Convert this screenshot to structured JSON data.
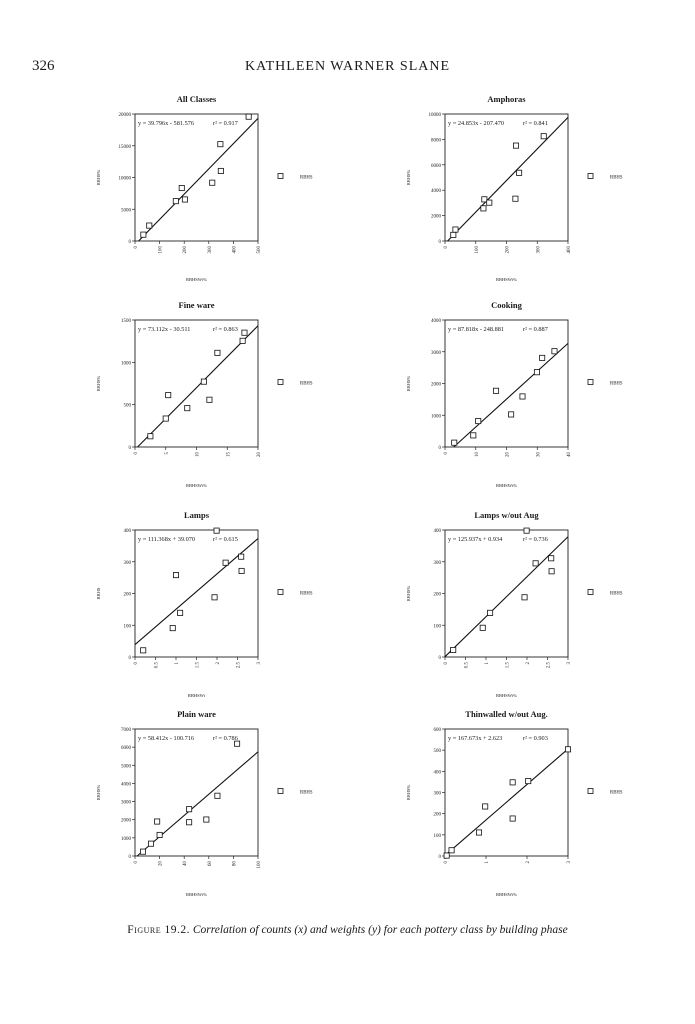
{
  "header": {
    "page_number": "326",
    "running_title": "KATHLEEN WARNER SLANE"
  },
  "caption": {
    "label": "Figure 19.2.",
    "text": "Correlation of counts (x) and weights (y) for each pottery class by building phase"
  },
  "chart_data": [
    {
      "type": "scatter",
      "title": "All Classes",
      "xlabel": "RBHSWt%",
      "ylabel": "RBHS%",
      "legend": "RBHS",
      "legend_position": "right",
      "equation": "y = 39.796x - 581.576",
      "r2_label": "r² = 0.917",
      "slope": 39.796,
      "intercept": -581.576,
      "xlim": [
        0,
        500
      ],
      "ylim": [
        0,
        20000
      ],
      "xticks": [
        0,
        100,
        200,
        300,
        400,
        500
      ],
      "yticks": [
        0,
        5000,
        10000,
        15000,
        20000
      ],
      "x": [
        34,
        58,
        166,
        190,
        203,
        314,
        347,
        349,
        462
      ],
      "y": [
        1000,
        2430,
        6280,
        8340,
        6540,
        9180,
        15250,
        11030,
        19580
      ]
    },
    {
      "type": "scatter",
      "title": "Amphoras",
      "xlabel": "RBHSWt%",
      "ylabel": "RBHS%",
      "legend": "RBHS",
      "legend_position": "right",
      "equation": "y = 24.853x - 207.470",
      "r2_label": "r² = 0.841",
      "slope": 24.853,
      "intercept": -207.47,
      "xlim": [
        0,
        400
      ],
      "ylim": [
        0,
        10000
      ],
      "xticks": [
        0,
        100,
        200,
        300,
        400
      ],
      "yticks": [
        0,
        2000,
        4000,
        6000,
        8000,
        10000
      ],
      "x": [
        27,
        34,
        125,
        128,
        144,
        229,
        231,
        241,
        321
      ],
      "y": [
        480,
        900,
        2570,
        3280,
        3020,
        3330,
        7510,
        5370,
        8250
      ]
    },
    {
      "type": "scatter",
      "title": "Fine ware",
      "xlabel": "RBHSWt%",
      "ylabel": "RBHS%",
      "legend": "RBHS",
      "legend_position": "right",
      "equation": "y = 73.112x - 30.511",
      "r2_label": "r² = 0.863",
      "slope": 73.112,
      "intercept": -30.511,
      "xlim": [
        0,
        20
      ],
      "ylim": [
        0,
        1500
      ],
      "xticks": [
        0,
        5,
        10,
        15,
        20
      ],
      "yticks": [
        0,
        500,
        1000,
        1500
      ],
      "x": [
        2.5,
        5.0,
        5.4,
        8.5,
        11.2,
        12.1,
        13.4,
        17.5,
        17.8
      ],
      "y": [
        127,
        336,
        613,
        459,
        772,
        558,
        1112,
        1254,
        1350
      ]
    },
    {
      "type": "scatter",
      "title": "Cooking",
      "xlabel": "RBHSWt%",
      "ylabel": "RBHS%",
      "legend": "RBHS",
      "legend_position": "right",
      "equation": "y = 87.818x - 248.881",
      "r2_label": "r² = 0.887",
      "slope": 87.818,
      "intercept": -248.881,
      "xlim": [
        0,
        40
      ],
      "ylim": [
        0,
        4000
      ],
      "xticks": [
        0,
        10,
        20,
        30,
        40
      ],
      "yticks": [
        0,
        1000,
        2000,
        3000,
        4000
      ],
      "x": [
        3.0,
        9.2,
        10.8,
        16.6,
        21.5,
        25.2,
        29.9,
        31.6,
        35.6
      ],
      "y": [
        136,
        366,
        817,
        1770,
        1026,
        1592,
        2356,
        2806,
        3016
      ]
    },
    {
      "type": "scatter",
      "title": "Lamps",
      "xlabel": "RBHSWt",
      "ylabel": "RBHS",
      "legend": "RBHS",
      "legend_position": "right",
      "equation": "y = 111.368x + 39.070",
      "r2_label": "r² = 0.615",
      "slope": 111.368,
      "intercept": 39.07,
      "xlim": [
        0,
        3
      ],
      "ylim": [
        0,
        400
      ],
      "xticks": [
        0,
        0.5,
        1,
        1.5,
        2,
        2.5,
        3
      ],
      "yticks": [
        0,
        100,
        200,
        300,
        400
      ],
      "x": [
        0.2,
        0.92,
        1.0,
        1.1,
        1.94,
        1.99,
        2.21,
        2.59,
        2.6
      ],
      "y": [
        21,
        91,
        258,
        139,
        188,
        398,
        297,
        316,
        271
      ]
    },
    {
      "type": "scatter",
      "title": "Lamps w/out Aug",
      "xlabel": "RBHSWt%",
      "ylabel": "RBHS%",
      "legend": "RBHS",
      "legend_position": "right",
      "equation": "y = 125.937x + 0.934",
      "r2_label": "r² = 0.736",
      "slope": 125.937,
      "intercept": 0.934,
      "xlim": [
        0,
        3
      ],
      "ylim": [
        0,
        400
      ],
      "xticks": [
        0,
        0.5,
        1,
        1.5,
        2,
        2.5,
        3
      ],
      "yticks": [
        0,
        100,
        200,
        300,
        400
      ],
      "x": [
        0.2,
        0.92,
        1.1,
        1.94,
        1.99,
        2.21,
        2.59,
        2.6
      ],
      "y": [
        22,
        92,
        139,
        188,
        398,
        295,
        311,
        270
      ]
    },
    {
      "type": "scatter",
      "title": "Plain ware",
      "xlabel": "RBHSWt%",
      "ylabel": "RBHS%",
      "legend": "RBHS",
      "legend_position": "right",
      "equation": "y = 58.412x - 100.716",
      "r2_label": "r² = 0.786",
      "slope": 58.412,
      "intercept": -100.716,
      "xlim": [
        0,
        100
      ],
      "ylim": [
        0,
        7000
      ],
      "xticks": [
        0,
        20,
        40,
        60,
        80,
        100
      ],
      "yticks": [
        0,
        1000,
        2000,
        3000,
        4000,
        5000,
        6000,
        7000
      ],
      "x": [
        6.5,
        13,
        18,
        20,
        44,
        44,
        58,
        67,
        83
      ],
      "y": [
        240,
        680,
        1900,
        1160,
        2580,
        1860,
        2010,
        3320,
        6190
      ]
    },
    {
      "type": "scatter",
      "title": "Thinwalled w/out Aug.",
      "xlabel": "RBHSWt%",
      "ylabel": "RBHS%",
      "legend": "RBHS",
      "legend_position": "right",
      "equation": "y = 167.673x + 2.623",
      "r2_label": "r² = 0.903",
      "slope": 167.673,
      "intercept": 2.623,
      "xlim": [
        0,
        3
      ],
      "ylim": [
        0,
        600
      ],
      "xticks": [
        0,
        1,
        2,
        3
      ],
      "yticks": [
        0,
        100,
        200,
        300,
        400,
        500,
        600
      ],
      "x": [
        0.04,
        0.16,
        0.83,
        0.98,
        1.65,
        1.65,
        2.03,
        3.0
      ],
      "y": [
        2,
        27,
        111,
        234,
        177,
        348,
        354,
        504
      ]
    }
  ]
}
